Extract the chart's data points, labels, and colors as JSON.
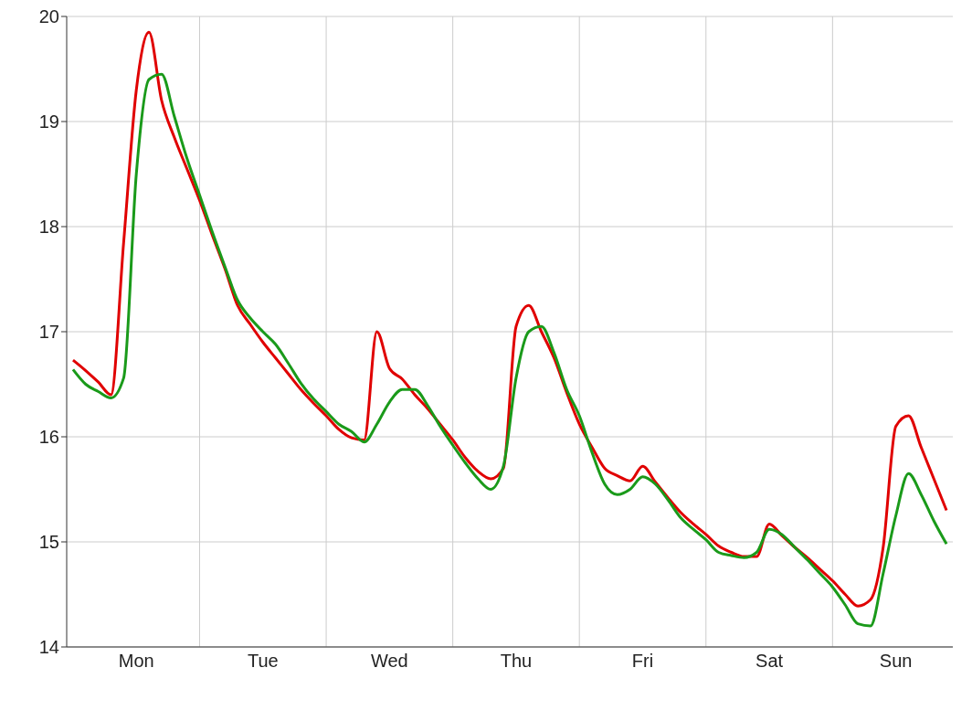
{
  "chart_data": {
    "type": "line",
    "ylim": [
      14,
      20
    ],
    "yticks": [
      14,
      15,
      16,
      17,
      18,
      19,
      20
    ],
    "categories": [
      null,
      null,
      null,
      null,
      null,
      "Mon",
      null,
      null,
      null,
      null,
      null,
      null,
      null,
      null,
      null,
      "Tue",
      null,
      null,
      null,
      null,
      null,
      null,
      null,
      null,
      null,
      "Wed",
      null,
      null,
      null,
      null,
      null,
      null,
      null,
      null,
      null,
      "Thu",
      null,
      null,
      null,
      null,
      null,
      null,
      null,
      null,
      null,
      "Fri",
      null,
      null,
      null,
      null,
      null,
      null,
      null,
      null,
      null,
      "Sat",
      null,
      null,
      null,
      null,
      null,
      null,
      null,
      null,
      null,
      "Sun",
      null,
      null,
      null,
      null
    ],
    "grid": true,
    "line_style": "solid",
    "series": [
      {
        "color": "#e00000",
        "values": [
          16.73,
          16.63,
          16.52,
          16.4,
          17.85,
          19.3,
          19.85,
          19.2,
          18.85,
          18.55,
          18.25,
          17.92,
          17.6,
          17.25,
          17.07,
          16.9,
          16.75,
          16.6,
          16.45,
          16.32,
          16.2,
          16.07,
          15.99,
          15.97,
          17.0,
          16.65,
          16.55,
          16.4,
          16.27,
          16.12,
          15.97,
          15.8,
          15.67,
          15.6,
          15.7,
          17.05,
          17.25,
          17.0,
          16.75,
          16.42,
          16.12,
          15.9,
          15.7,
          15.63,
          15.58,
          15.72,
          15.57,
          15.42,
          15.28,
          15.17,
          15.07,
          14.96,
          14.9,
          14.86,
          14.86,
          15.17,
          15.06,
          14.95,
          14.85,
          14.74,
          14.63,
          14.5,
          14.39,
          14.45,
          14.95,
          16.1,
          16.2,
          15.9,
          15.6,
          15.3
        ]
      },
      {
        "color": "#1a9a1a",
        "values": [
          16.64,
          16.5,
          16.43,
          16.37,
          16.56,
          18.5,
          19.4,
          19.45,
          19.05,
          18.65,
          18.3,
          17.95,
          17.62,
          17.3,
          17.13,
          17.0,
          16.88,
          16.7,
          16.51,
          16.36,
          16.24,
          16.12,
          16.05,
          15.95,
          16.12,
          16.33,
          16.45,
          16.45,
          16.3,
          16.1,
          15.92,
          15.75,
          15.6,
          15.5,
          15.72,
          16.56,
          17.0,
          17.05,
          16.8,
          16.45,
          16.2,
          15.85,
          15.55,
          15.45,
          15.5,
          15.62,
          15.55,
          15.4,
          15.23,
          15.12,
          15.02,
          14.9,
          14.87,
          14.85,
          14.9,
          15.12,
          15.07,
          14.95,
          14.83,
          14.7,
          14.57,
          14.4,
          14.22,
          14.2,
          14.7,
          15.25,
          15.65,
          15.45,
          15.2,
          14.98
        ]
      }
    ]
  }
}
